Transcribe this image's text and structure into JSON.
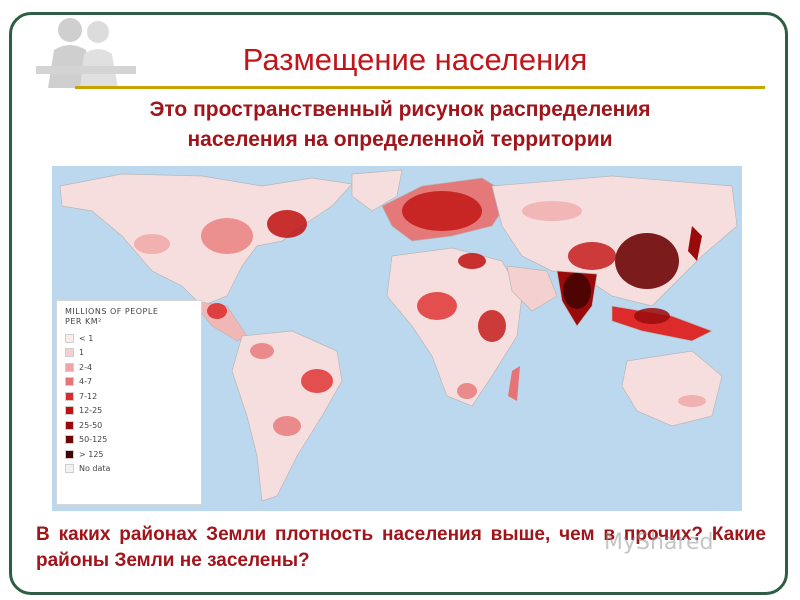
{
  "slide": {
    "title": "Размещение населения",
    "subtitle_line1": "Это пространственный  рисунок распределения",
    "subtitle_line2": "населения  на определенной территории",
    "question": "В каких районах Земли плотность населения выше, чем в прочих?    Какие районы Земли не заселены?",
    "watermark": "MyShared"
  },
  "map": {
    "ocean_color": "#bcd8ee",
    "land_color": "#f7dede",
    "legend": {
      "title_line1": "MILLIONS OF PEOPLE",
      "title_line2": "PER KM²",
      "items": [
        {
          "label": "< 1",
          "color": "#fbecec"
        },
        {
          "label": "1",
          "color": "#f5d0d0"
        },
        {
          "label": "2-4",
          "color": "#efa5a5"
        },
        {
          "label": "4-7",
          "color": "#e77474"
        },
        {
          "label": "7-12",
          "color": "#dd2a2a"
        },
        {
          "label": "12-25",
          "color": "#c01010"
        },
        {
          "label": "25-50",
          "color": "#9a0a0a"
        },
        {
          "label": "50-125",
          "color": "#6e0606"
        },
        {
          "label": "> 125",
          "color": "#420303"
        },
        {
          "label": "No data",
          "color": "#f2f2f2"
        }
      ]
    }
  }
}
